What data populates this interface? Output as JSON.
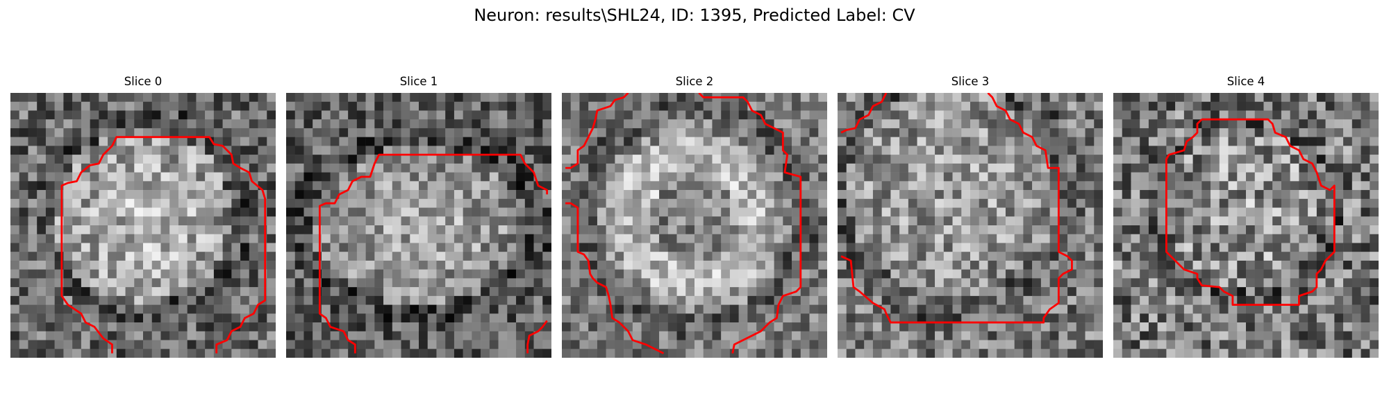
{
  "figure": {
    "title": "Neuron: results\\SHL24, ID: 1395, Predicted Label: CV"
  },
  "panels": [
    {
      "title": "Slice 0"
    },
    {
      "title": "Slice 1"
    },
    {
      "title": "Slice 2"
    },
    {
      "title": "Slice 3"
    },
    {
      "title": "Slice 4"
    }
  ],
  "colors": {
    "contour": "#ff0000",
    "background": "#ffffff"
  }
}
